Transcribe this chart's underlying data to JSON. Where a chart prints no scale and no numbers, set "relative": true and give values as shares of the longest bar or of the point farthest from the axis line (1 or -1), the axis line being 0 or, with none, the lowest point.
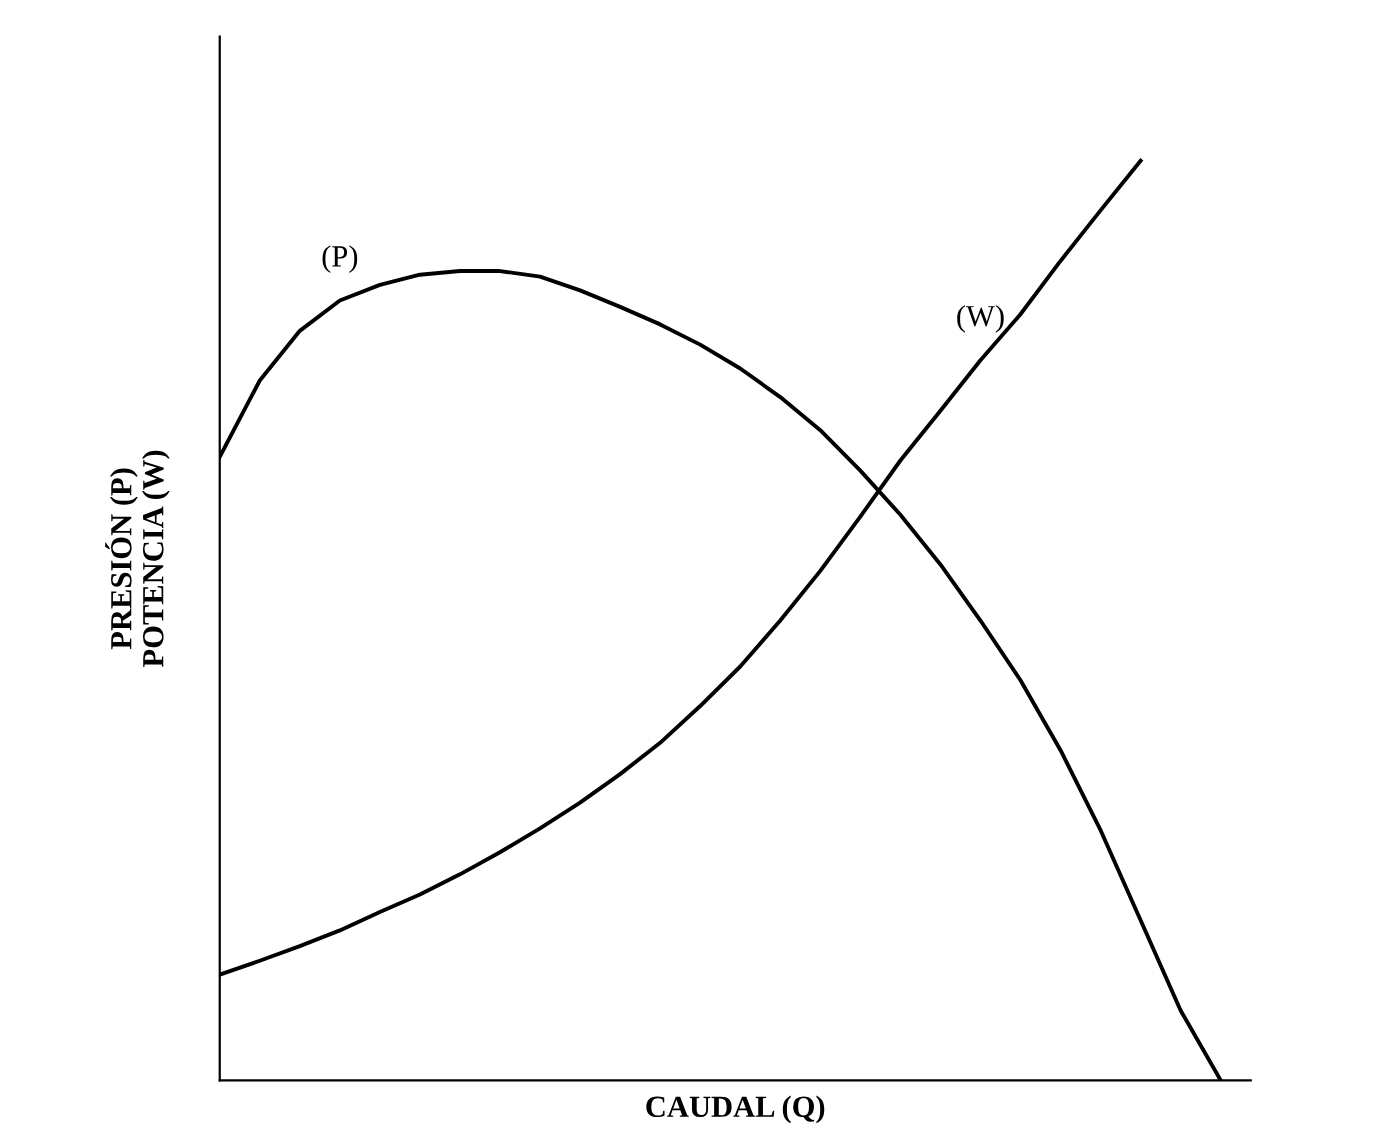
{
  "chart_data": {
    "type": "line",
    "relative": true,
    "xlabel": "CAUDAL (Q)",
    "ylabel": "PRESIÓN (P)\nPOTENCIA (W)",
    "categories": [
      null,
      null,
      null,
      null,
      null,
      null,
      null,
      null,
      null,
      null,
      null,
      null,
      null,
      null,
      null,
      null,
      null,
      null,
      null,
      null,
      null,
      null,
      null,
      null,
      null,
      null
    ],
    "series": [
      {
        "name": "(P)",
        "color": "#000000",
        "values": [
          0.678,
          0.761,
          0.815,
          0.848,
          0.865,
          0.876,
          0.88,
          0.88,
          0.874,
          0.859,
          0.841,
          0.822,
          0.8,
          0.774,
          0.743,
          0.707,
          0.663,
          0.615,
          0.561,
          0.5,
          0.435,
          0.359,
          0.272,
          0.174,
          0.076,
          0
        ]
      },
      {
        "name": "(W)",
        "color": "#000000",
        "values": [
          0.115,
          0.13,
          0.146,
          0.163,
          0.183,
          0.202,
          0.224,
          0.248,
          0.274,
          0.302,
          0.333,
          0.367,
          0.407,
          0.45,
          0.5,
          0.554,
          0.613,
          0.674,
          0.728,
          0.783,
          0.833,
          0.891,
          0.946,
          1.0,
          null,
          null
        ]
      }
    ],
    "grid": false,
    "legend": false,
    "marker": "none",
    "line_style": "solid"
  }
}
